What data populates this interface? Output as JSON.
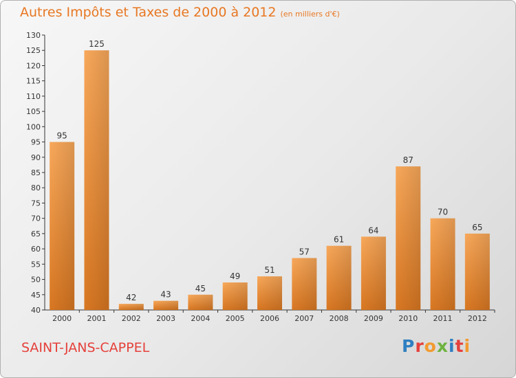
{
  "header": {
    "title": "Autres Impôts et Taxes de 2000 à 2012",
    "subtitle": "(en milliers d'€)"
  },
  "footer": {
    "city": "SAINT-JANS-CAPPEL",
    "brand": "Proxiti"
  },
  "colors": {
    "title": "#e87722",
    "city": "#e5403b",
    "bar_light": "#f8a85a",
    "bar_dark": "#d87722",
    "axis": "#333333",
    "label": "#333333",
    "logo": [
      "#2f7fc1",
      "#e5403b",
      "#f29a2e",
      "#6db33f",
      "#2f7fc1",
      "#e5403b",
      "#f29a2e"
    ]
  },
  "chart_data": {
    "type": "bar",
    "categories": [
      "2000",
      "2001",
      "2002",
      "2003",
      "2004",
      "2005",
      "2006",
      "2007",
      "2008",
      "2009",
      "2010",
      "2011",
      "2012"
    ],
    "values": [
      95,
      125,
      42,
      43,
      45,
      49,
      51,
      57,
      61,
      64,
      87,
      70,
      65
    ],
    "ylim": [
      40,
      130
    ],
    "yticks": [
      40,
      45,
      50,
      55,
      60,
      65,
      70,
      75,
      80,
      85,
      90,
      95,
      100,
      105,
      110,
      115,
      120,
      125,
      130
    ],
    "grid": false,
    "xlabel": "",
    "ylabel": ""
  }
}
